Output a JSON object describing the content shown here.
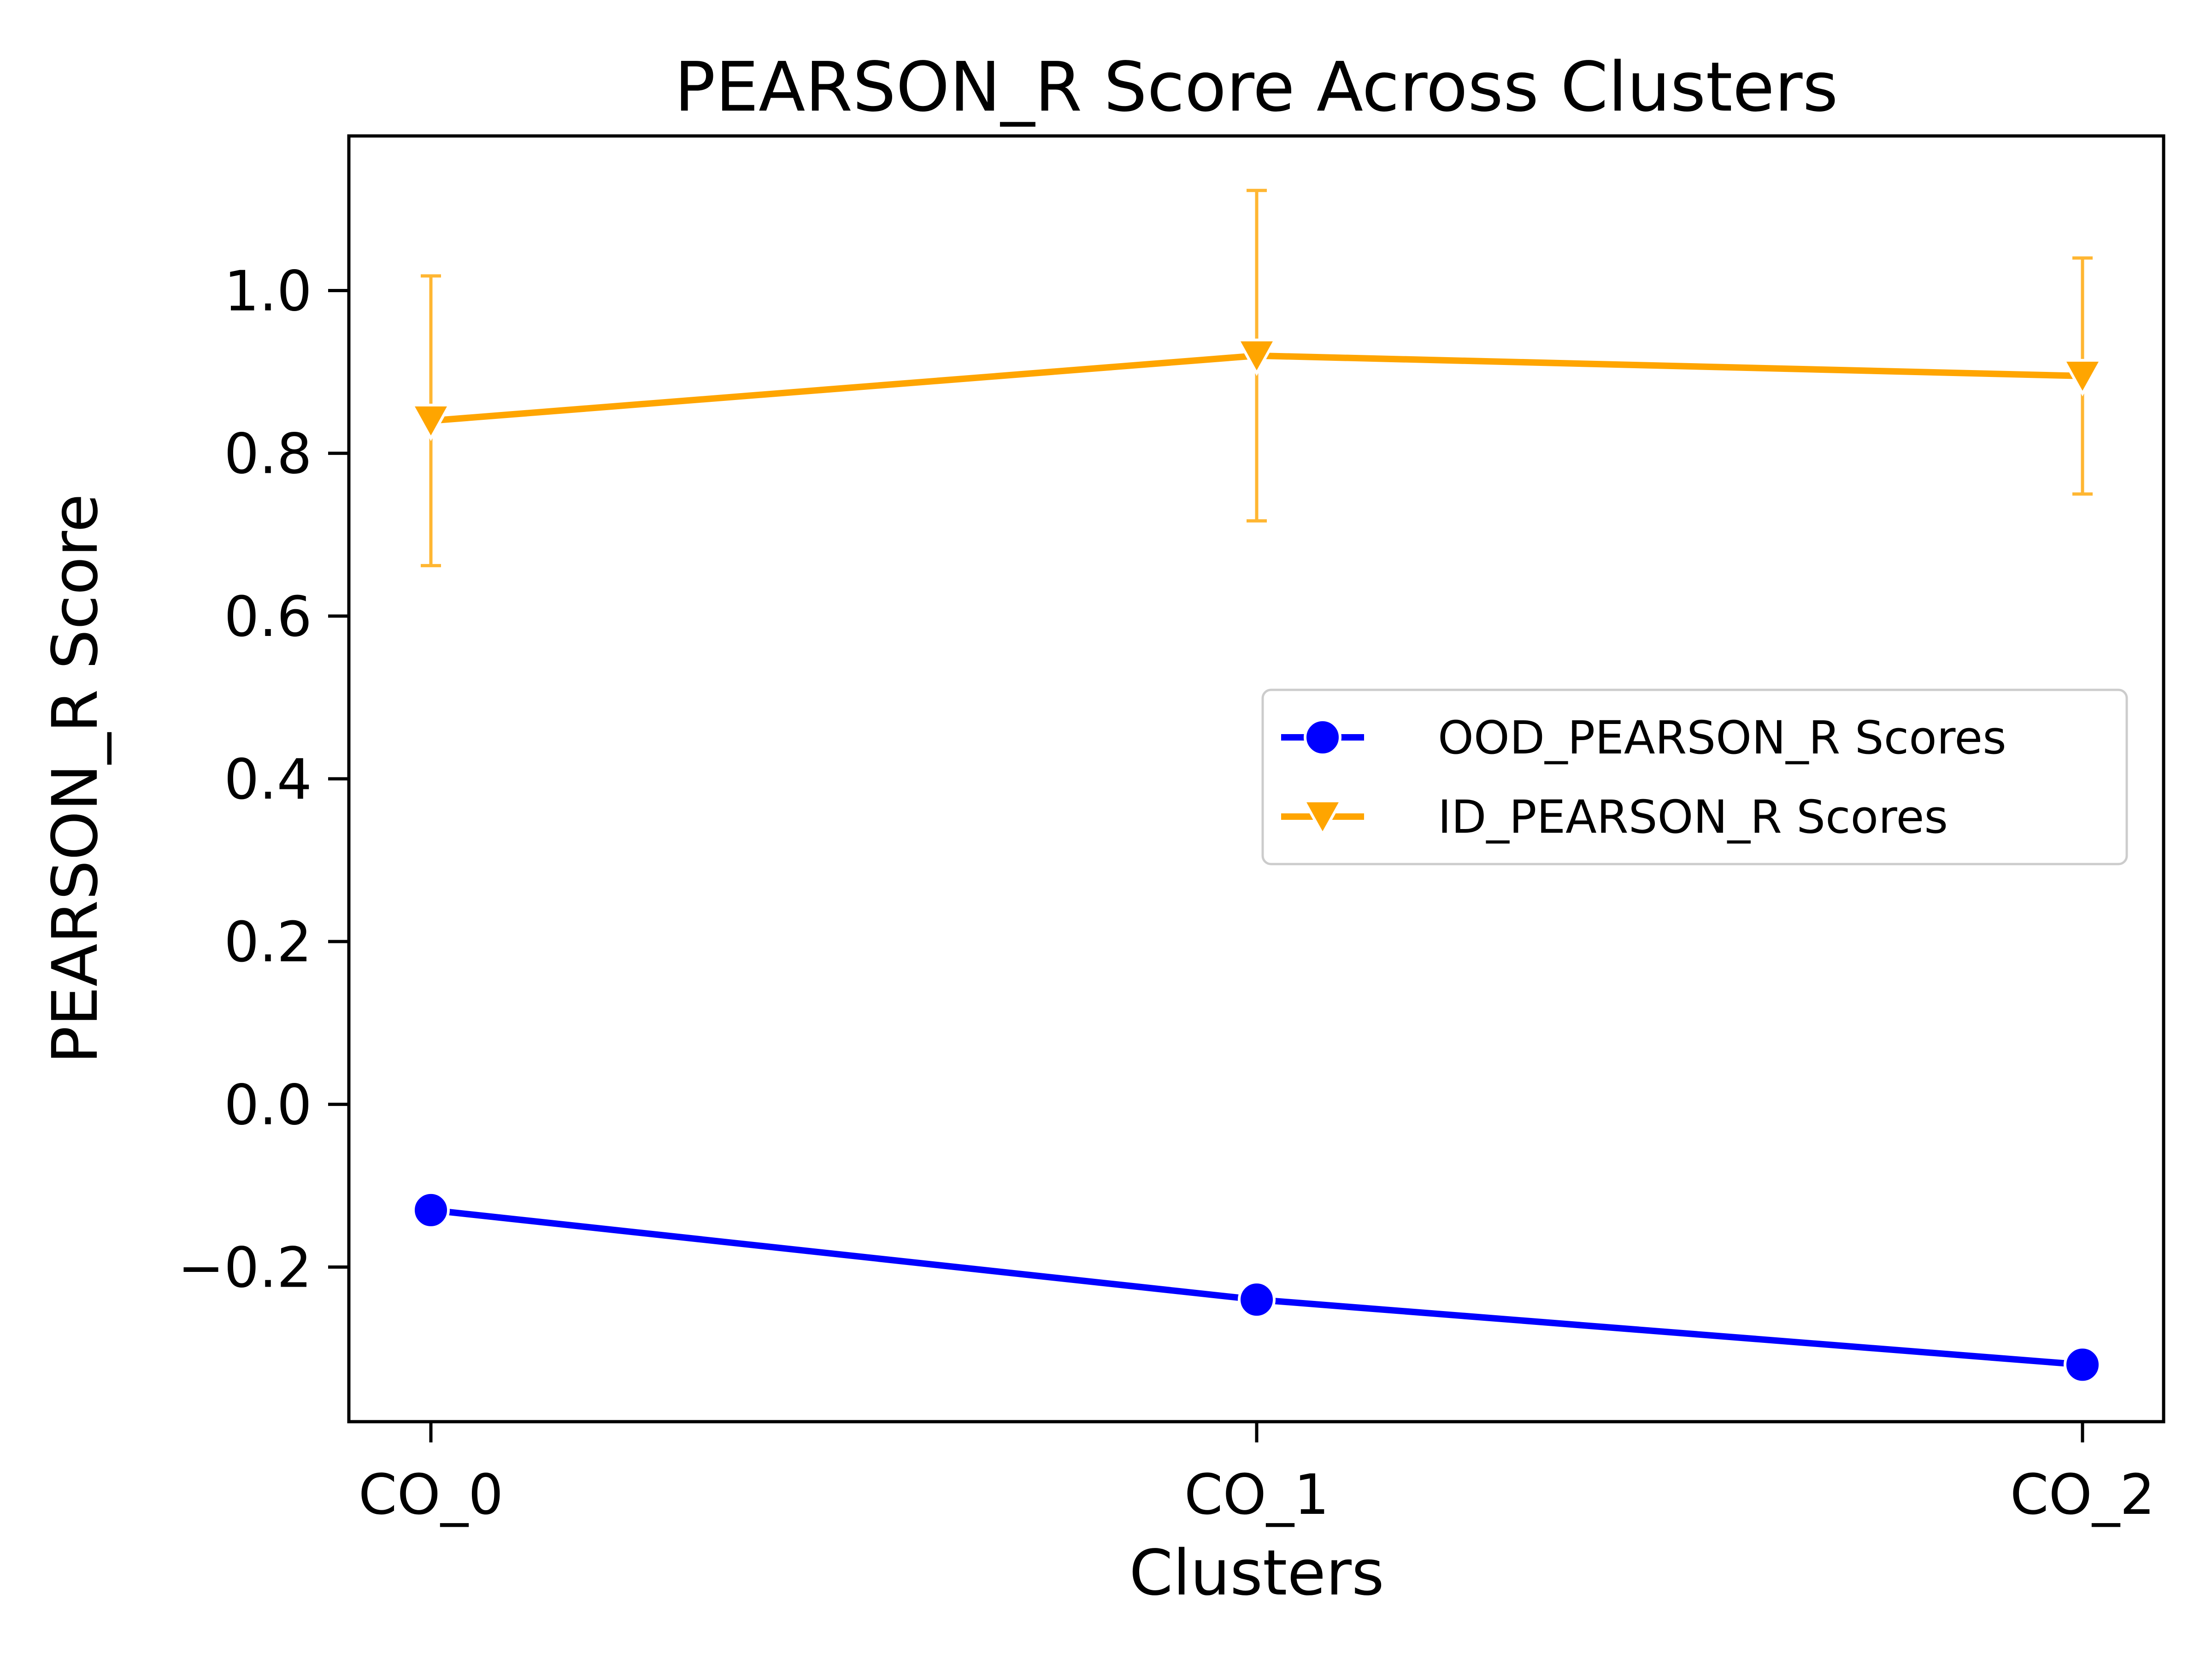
{
  "chart_data": {
    "type": "line",
    "title": "PEARSON_R Score Across Clusters",
    "xlabel": "Clusters",
    "ylabel": "PEARSON_R Score",
    "categories": [
      "CO_0",
      "CO_1",
      "CO_2"
    ],
    "ylim": [
      -0.39,
      1.19
    ],
    "yticks": [
      -0.2,
      0.0,
      0.2,
      0.4,
      0.6,
      0.8,
      1.0
    ],
    "ytick_labels": [
      "−0.2",
      "0.0",
      "0.2",
      "0.4",
      "0.6",
      "0.8",
      "1.0"
    ],
    "grid": false,
    "legend_position": "center-right",
    "series": [
      {
        "name": "OOD_PEARSON_R Scores",
        "color": "#0000ff",
        "marker": "circle",
        "values": [
          -0.13,
          -0.24,
          -0.32
        ]
      },
      {
        "name": "ID_PEARSON_R Scores",
        "color": "#ffa500",
        "marker": "triangle-down",
        "values": [
          0.84,
          0.92,
          0.895
        ],
        "error": [
          0.178,
          0.203,
          0.145
        ]
      }
    ]
  }
}
